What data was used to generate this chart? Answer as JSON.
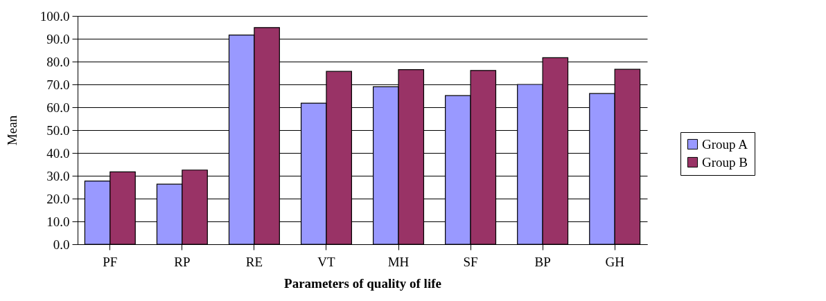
{
  "chart_data": {
    "type": "bar",
    "xlabel": "Parameters of quality of life",
    "ylabel": "Mean",
    "categories": [
      "PF",
      "RP",
      "RE",
      "VT",
      "MH",
      "SF",
      "BP",
      "GH"
    ],
    "series": [
      {
        "name": "Group A",
        "color": "#9999ff",
        "values": [
          27.7,
          26.3,
          91.6,
          61.8,
          69.0,
          65.1,
          70.0,
          66.0
        ]
      },
      {
        "name": "Group B",
        "color": "#993366",
        "values": [
          31.7,
          32.5,
          94.9,
          75.7,
          76.5,
          76.1,
          81.7,
          76.6
        ]
      }
    ],
    "ylim": [
      0,
      100
    ],
    "yticks": [
      {
        "value": 0,
        "label": "0.0"
      },
      {
        "value": 10,
        "label": "10.0"
      },
      {
        "value": 20,
        "label": "20.0"
      },
      {
        "value": 30,
        "label": "30.0"
      },
      {
        "value": 40,
        "label": "40.0"
      },
      {
        "value": 50,
        "label": "50.0"
      },
      {
        "value": 60,
        "label": "60.0"
      },
      {
        "value": 70,
        "label": "70.0"
      },
      {
        "value": 80,
        "label": "80.0"
      },
      {
        "value": 90,
        "label": "90.0"
      },
      {
        "value": 100,
        "label": "100.0"
      }
    ],
    "grid": "y",
    "legend": "right"
  }
}
